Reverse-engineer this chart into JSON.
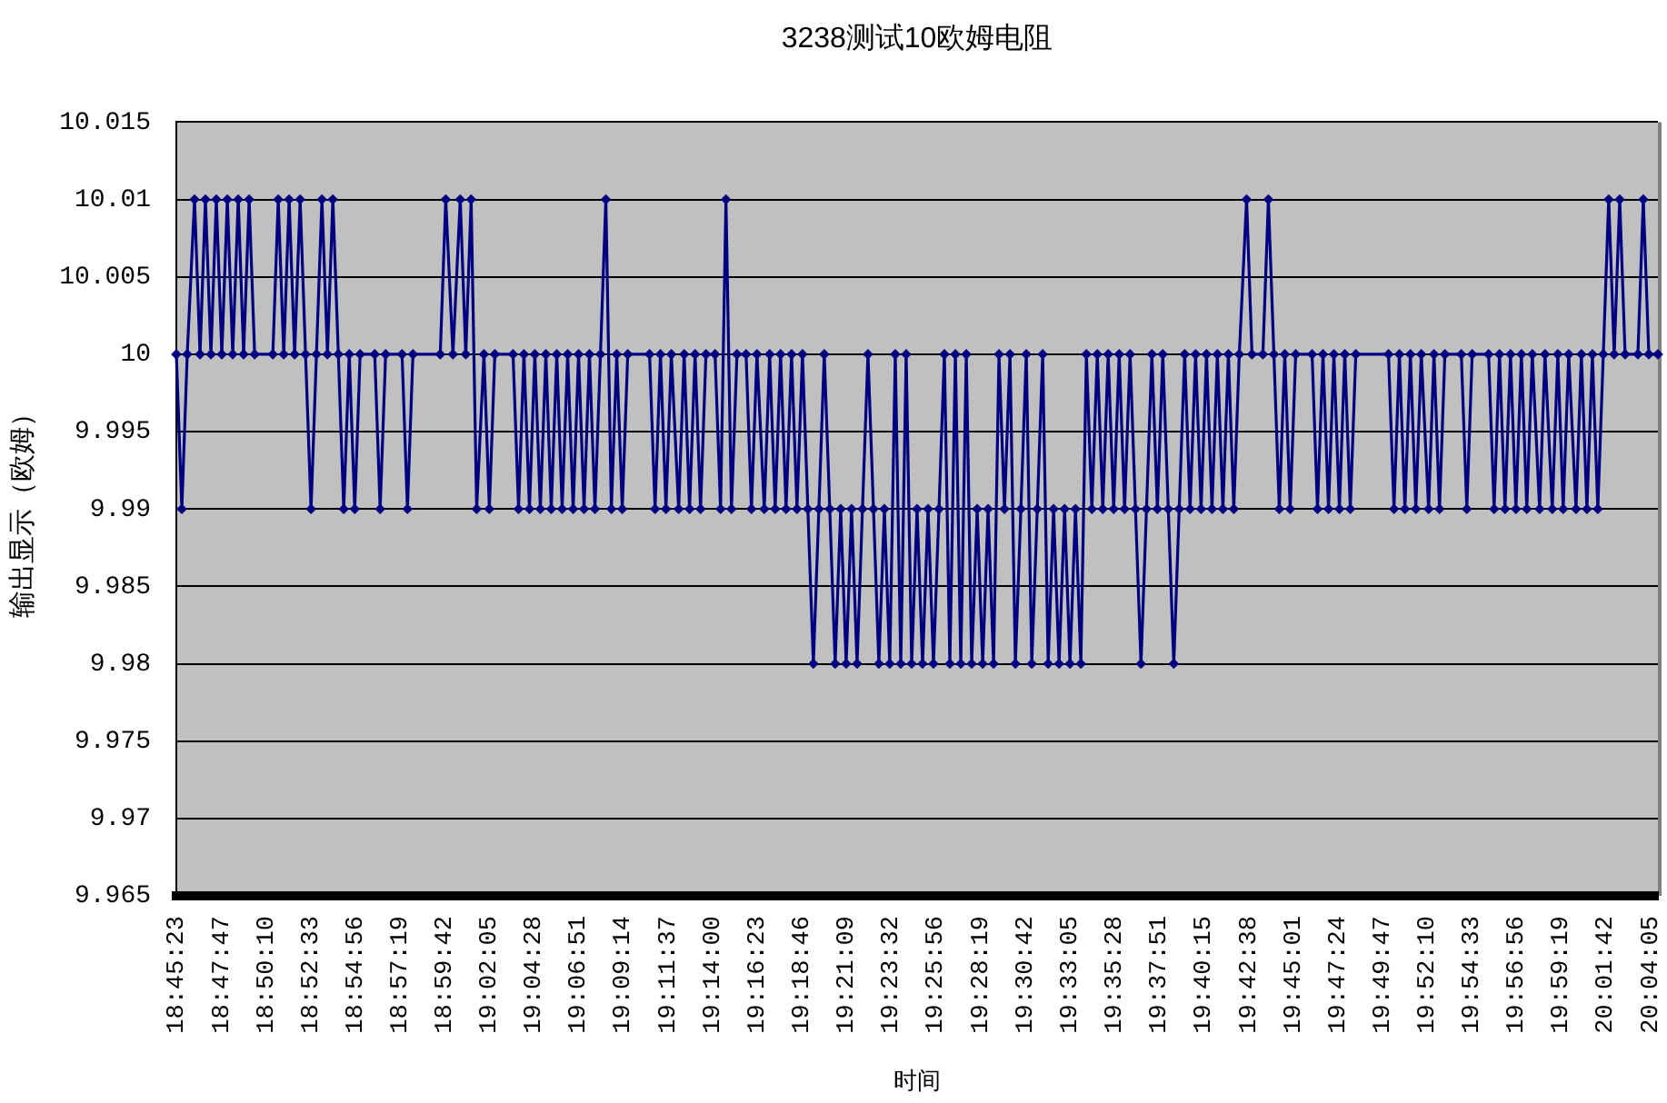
{
  "chart_data": {
    "type": "line",
    "title": "3238测试10欧姆电阻",
    "xlabel": "时间",
    "ylabel": "输出显示（欧姆）",
    "x": [
      18.7564,
      18.7613,
      18.7661,
      18.7726,
      18.7775,
      18.7823,
      18.7872,
      18.792,
      18.7969,
      18.8018,
      18.8066,
      18.8115,
      18.8163,
      18.8212,
      18.8261,
      18.8423,
      18.8471,
      18.852,
      18.8568,
      18.8617,
      18.8666,
      18.8714,
      18.8763,
      18.8811,
      18.886,
      18.8909,
      18.8957,
      18.9006,
      18.9054,
      18.9103,
      18.9152,
      18.92,
      18.933,
      18.9378,
      18.9427,
      18.9573,
      18.9621,
      18.967,
      18.9913,
      18.9962,
      19.0026,
      19.0091,
      19.014,
      19.0188,
      19.0237,
      19.0302,
      19.035,
      19.0399,
      19.0561,
      19.061,
      19.0658,
      19.0707,
      19.0755,
      19.0804,
      19.0853,
      19.0901,
      19.095,
      19.0998,
      19.1047,
      19.1096,
      19.1144,
      19.1193,
      19.1241,
      19.129,
      19.1339,
      19.1387,
      19.1436,
      19.1484,
      19.1533,
      19.1582,
      19.1776,
      19.1825,
      19.1873,
      19.1922,
      19.197,
      19.2035,
      19.2084,
      19.2132,
      19.2181,
      19.223,
      19.2278,
      19.2359,
      19.2408,
      19.2456,
      19.2505,
      19.2554,
      19.2635,
      19.2683,
      19.2732,
      19.2797,
      19.2845,
      19.2894,
      19.2942,
      19.2991,
      19.304,
      19.3088,
      19.3137,
      19.3185,
      19.3234,
      19.3283,
      19.3331,
      19.338,
      19.3428,
      19.3477,
      19.3526,
      19.3574,
      19.3623,
      19.3671,
      19.372,
      19.3769,
      19.3817,
      19.3866,
      19.3914,
      19.3963,
      19.4012,
      19.406,
      19.4109,
      19.4157,
      19.4206,
      19.4255,
      19.4303,
      19.4352,
      19.44,
      19.4449,
      19.4498,
      19.4546,
      19.4595,
      19.4643,
      19.4692,
      19.4741,
      19.4789,
      19.4838,
      19.4886,
      19.4935,
      19.4984,
      19.5032,
      19.5081,
      19.5129,
      19.5178,
      19.5227,
      19.5275,
      19.5324,
      19.5372,
      19.5421,
      19.547,
      19.5518,
      19.5567,
      19.5615,
      19.5664,
      19.5713,
      19.5761,
      19.581,
      19.5858,
      19.5907,
      19.5956,
      19.6004,
      19.6053,
      19.6101,
      19.615,
      19.6199,
      19.6247,
      19.6296,
      19.6344,
      19.6393,
      19.6442,
      19.649,
      19.6539,
      19.6587,
      19.6636,
      19.6685,
      19.6733,
      19.6782,
      19.683,
      19.6879,
      19.6928,
      19.6976,
      19.7025,
      19.709,
      19.7138,
      19.7235,
      19.7284,
      19.7333,
      19.7381,
      19.743,
      19.7478,
      19.7527,
      19.7673,
      19.7721,
      19.777,
      19.7819,
      19.7867,
      19.7916,
      19.7964,
      19.8013,
      19.8062,
      19.8353,
      19.8402,
      19.845,
      19.8499,
      19.8548,
      19.8596,
      19.8645,
      19.871,
      19.8758,
      19.8807,
      19.8855,
      19.9001,
      19.905,
      19.9098,
      19.9244,
      19.9293,
      19.9341,
      19.939,
      19.9439,
      19.9487,
      19.9536,
      19.9584,
      19.9633,
      19.9698,
      19.9746,
      19.9811,
      19.986,
      19.9908,
      19.9957,
      20.0022,
      20.007,
      20.0119,
      20.0168,
      20.0216,
      20.0265,
      20.0313,
      20.0362,
      20.0411,
      20.0459,
      20.0573,
      20.0621,
      20.067,
      20.0751
    ],
    "series": [
      {
        "color": "#000080",
        "values": [
          10,
          9.99,
          10,
          10.01,
          10,
          10.01,
          10,
          10.01,
          10,
          10.01,
          10,
          10.01,
          10,
          10.01,
          10,
          10,
          10.01,
          10,
          10.01,
          10,
          10.01,
          10,
          9.99,
          10,
          10.01,
          10,
          10.01,
          10,
          9.99,
          10,
          9.99,
          10,
          10,
          9.99,
          10,
          10,
          9.99,
          10,
          10,
          10.01,
          10,
          10.01,
          10,
          10.01,
          9.99,
          10,
          9.99,
          10,
          10,
          9.99,
          10,
          9.99,
          10,
          9.99,
          10,
          9.99,
          10,
          9.99,
          10,
          9.99,
          10,
          9.99,
          10,
          9.99,
          10,
          10.01,
          9.99,
          10,
          9.99,
          10,
          10,
          9.99,
          10,
          9.99,
          10,
          9.99,
          10,
          9.99,
          10,
          9.99,
          10,
          10,
          9.99,
          10.01,
          9.99,
          10,
          10,
          9.99,
          10,
          9.99,
          10,
          9.99,
          10,
          9.99,
          10,
          9.99,
          10,
          9.99,
          9.98,
          9.99,
          10,
          9.99,
          9.98,
          9.99,
          9.98,
          9.99,
          9.98,
          9.99,
          10,
          9.99,
          9.98,
          9.99,
          9.98,
          10,
          9.98,
          10,
          9.98,
          9.99,
          9.98,
          9.99,
          9.98,
          9.99,
          10,
          9.98,
          10,
          9.98,
          10,
          9.98,
          9.99,
          9.98,
          9.99,
          9.98,
          10,
          9.99,
          10,
          9.98,
          9.99,
          10,
          9.98,
          9.99,
          10,
          9.98,
          9.99,
          9.98,
          9.99,
          9.98,
          9.99,
          9.98,
          10,
          9.99,
          10,
          9.99,
          10,
          9.99,
          10,
          9.99,
          10,
          9.99,
          9.98,
          9.99,
          10,
          9.99,
          10,
          9.99,
          9.98,
          9.99,
          10,
          9.99,
          10,
          9.99,
          10,
          9.99,
          10,
          9.99,
          10,
          9.99,
          10,
          10.01,
          10,
          10,
          10.01,
          10,
          9.99,
          10,
          9.99,
          10,
          10,
          9.99,
          10,
          9.99,
          10,
          9.99,
          10,
          9.99,
          10,
          10,
          9.99,
          10,
          9.99,
          10,
          9.99,
          10,
          9.99,
          10,
          9.99,
          10,
          10,
          9.99,
          10,
          10,
          9.99,
          10,
          9.99,
          10,
          9.99,
          10,
          9.99,
          10,
          9.99,
          10,
          9.99,
          10,
          9.99,
          10,
          9.99,
          10,
          9.99,
          10,
          9.99,
          10,
          10.01,
          10,
          10.01,
          10,
          10,
          10.01,
          10,
          10
        ]
      }
    ],
    "xlim": [
      18.7564,
      20.0751
    ],
    "xticks": [
      {
        "value": 18.7564,
        "label": "18:45:23"
      },
      {
        "value": 18.7964,
        "label": "18:47:47"
      },
      {
        "value": 18.8361,
        "label": "18:50:10"
      },
      {
        "value": 18.8758,
        "label": "18:52:33"
      },
      {
        "value": 18.9156,
        "label": "18:54:56"
      },
      {
        "value": 18.9553,
        "label": "18:57:19"
      },
      {
        "value": 18.995,
        "label": "18:59:42"
      },
      {
        "value": 19.0347,
        "label": "19:02:05"
      },
      {
        "value": 19.0744,
        "label": "19:04:28"
      },
      {
        "value": 19.1142,
        "label": "19:06:51"
      },
      {
        "value": 19.1539,
        "label": "19:09:14"
      },
      {
        "value": 19.1936,
        "label": "19:11:37"
      },
      {
        "value": 19.2333,
        "label": "19:14:00"
      },
      {
        "value": 19.2731,
        "label": "19:16:23"
      },
      {
        "value": 19.3128,
        "label": "19:18:46"
      },
      {
        "value": 19.3525,
        "label": "19:21:09"
      },
      {
        "value": 19.3922,
        "label": "19:23:32"
      },
      {
        "value": 19.4322,
        "label": "19:25:56"
      },
      {
        "value": 19.4719,
        "label": "19:28:19"
      },
      {
        "value": 19.5117,
        "label": "19:30:42"
      },
      {
        "value": 19.5514,
        "label": "19:33:05"
      },
      {
        "value": 19.5911,
        "label": "19:35:28"
      },
      {
        "value": 19.6308,
        "label": "19:37:51"
      },
      {
        "value": 19.6708,
        "label": "19:40:15"
      },
      {
        "value": 19.7106,
        "label": "19:42:38"
      },
      {
        "value": 19.7503,
        "label": "19:45:01"
      },
      {
        "value": 19.79,
        "label": "19:47:24"
      },
      {
        "value": 19.8297,
        "label": "19:49:47"
      },
      {
        "value": 19.8694,
        "label": "19:52:10"
      },
      {
        "value": 19.9092,
        "label": "19:54:33"
      },
      {
        "value": 19.9489,
        "label": "19:56:56"
      },
      {
        "value": 19.9886,
        "label": "19:59:19"
      },
      {
        "value": 20.0283,
        "label": "20:01:42"
      },
      {
        "value": 20.0681,
        "label": "20:04:05"
      }
    ],
    "ylim": [
      9.965,
      10.015
    ],
    "yticks": [
      10.015,
      10.01,
      10.005,
      10,
      9.995,
      9.99,
      9.985,
      9.98,
      9.975,
      9.97,
      9.965
    ],
    "grid": "y",
    "marker": "diamond",
    "line_style": "solid"
  }
}
